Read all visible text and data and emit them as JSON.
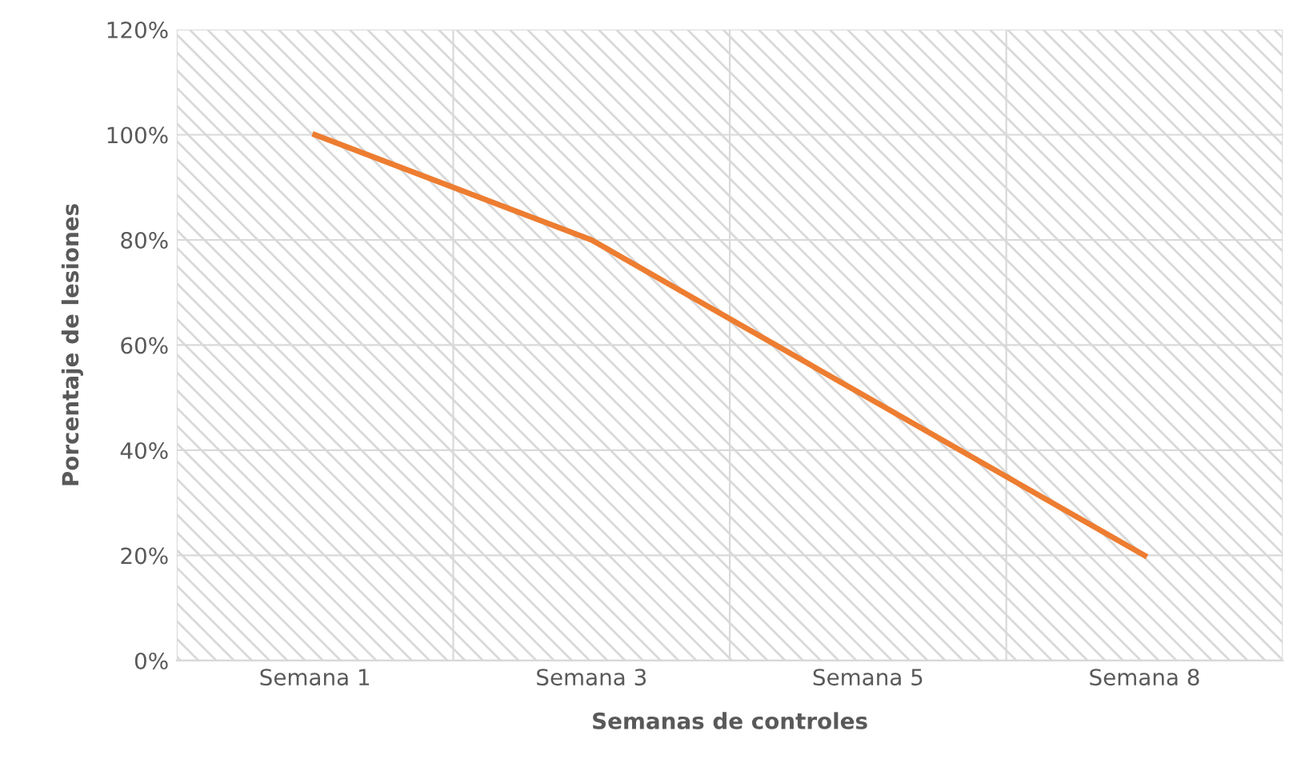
{
  "chart_data": {
    "type": "line",
    "xlabel": "Semanas de controles",
    "ylabel": "Porcentaje de lesiones",
    "categories": [
      "Semana 1",
      "Semana 3",
      "Semana 5",
      "Semana 8"
    ],
    "series": [
      {
        "color": "#ed7d31",
        "values": [
          100,
          80,
          50,
          20
        ]
      }
    ],
    "ylim": [
      0,
      120
    ],
    "yticks": [
      {
        "value": 0,
        "label": "0%"
      },
      {
        "value": 20,
        "label": "20%"
      },
      {
        "value": 40,
        "label": "40%"
      },
      {
        "value": 60,
        "label": "60%"
      },
      {
        "value": 80,
        "label": "80%"
      },
      {
        "value": 100,
        "label": "100%"
      },
      {
        "value": 120,
        "label": "120%"
      }
    ],
    "grid": true,
    "marker": "none",
    "line_style": "solid"
  }
}
